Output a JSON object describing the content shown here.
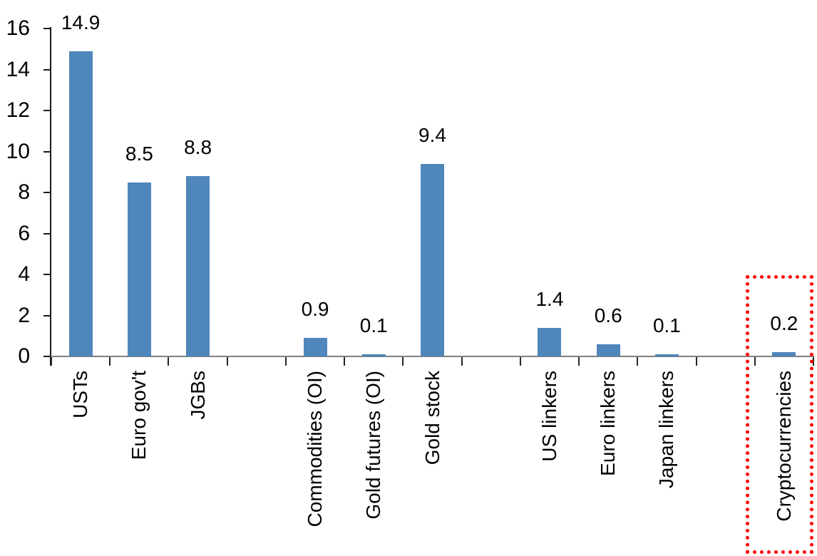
{
  "chart_data": {
    "type": "bar",
    "title": "",
    "xlabel": "",
    "ylabel": "",
    "categories": [
      "USTs",
      "Euro gov't",
      "JGBs",
      "Commodities (OI)",
      "Gold futures (OI)",
      "Gold stock",
      "US linkers",
      "Euro linkers",
      "Japan linkers",
      "Cryptocurrencies"
    ],
    "values": [
      14.9,
      8.5,
      8.8,
      0.9,
      0.1,
      9.4,
      1.4,
      0.6,
      0.1,
      0.2
    ],
    "data_labels": [
      "14.9",
      "8.5",
      "8.8",
      "0.9",
      "0.1",
      "9.4",
      "1.4",
      "0.6",
      "0.1",
      "0.2"
    ],
    "slot_indices": [
      0,
      1,
      2,
      4,
      5,
      6,
      8,
      9,
      10,
      12
    ],
    "total_slots": 13,
    "ylim": [
      0,
      16
    ],
    "yticks": [
      0,
      2,
      4,
      6,
      8,
      10,
      12,
      14,
      16
    ],
    "ytick_labels": [
      "0",
      "2",
      "4",
      "6",
      "8",
      "10",
      "12",
      "14",
      "16"
    ],
    "grid": false,
    "legend": null,
    "bar_color": "#4F86BC",
    "x_axis_color": "#808080",
    "y_axis_color": "#1A1A1A",
    "text_color": "#000000",
    "highlight": {
      "category": "Cryptocurrencies",
      "border_color": "#FF0000",
      "border_style": "dotted"
    }
  }
}
